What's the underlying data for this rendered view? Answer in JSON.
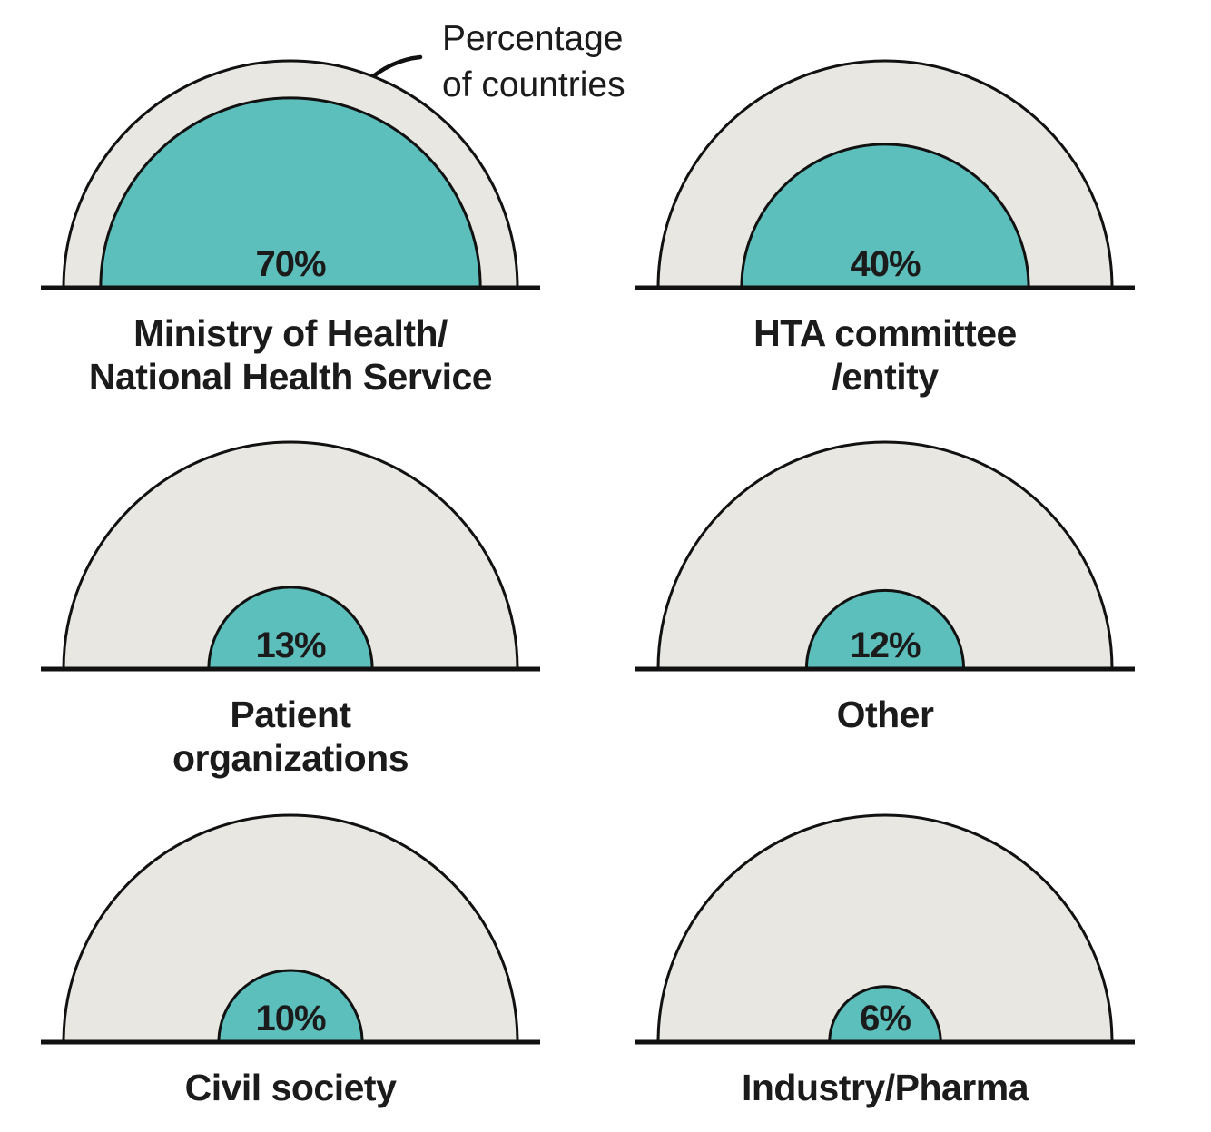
{
  "annotation": {
    "text": "Percentage\nof countries"
  },
  "chart_data": {
    "type": "pie",
    "variant": "proportional-semicircle-gauge-grid",
    "title": "Percentage of countries",
    "categories": [
      "Ministry of Health/National Health Service",
      "HTA committee/entity",
      "Patient organizations",
      "Other",
      "Civil society",
      "Industry/Pharma"
    ],
    "values": [
      70,
      40,
      13,
      12,
      10,
      6
    ],
    "unit": "% of countries",
    "max_value": 100,
    "grid": false,
    "legend_position": "none"
  },
  "charts": [
    {
      "pct_label": "70%",
      "label": "Ministry of Health/\nNational Health Service"
    },
    {
      "pct_label": "40%",
      "label": "HTA committee\n/entity"
    },
    {
      "pct_label": "13%",
      "label": "Patient\norganizations"
    },
    {
      "pct_label": "12%",
      "label": "Other"
    },
    {
      "pct_label": "10%",
      "label": "Civil society"
    },
    {
      "pct_label": "6%",
      "label": "Industry/Pharma"
    }
  ],
  "colors": {
    "value_fill": "#5cbfbc",
    "track_fill": "#e8e7e2",
    "stroke": "#111111",
    "text": "#1b1b1b"
  }
}
